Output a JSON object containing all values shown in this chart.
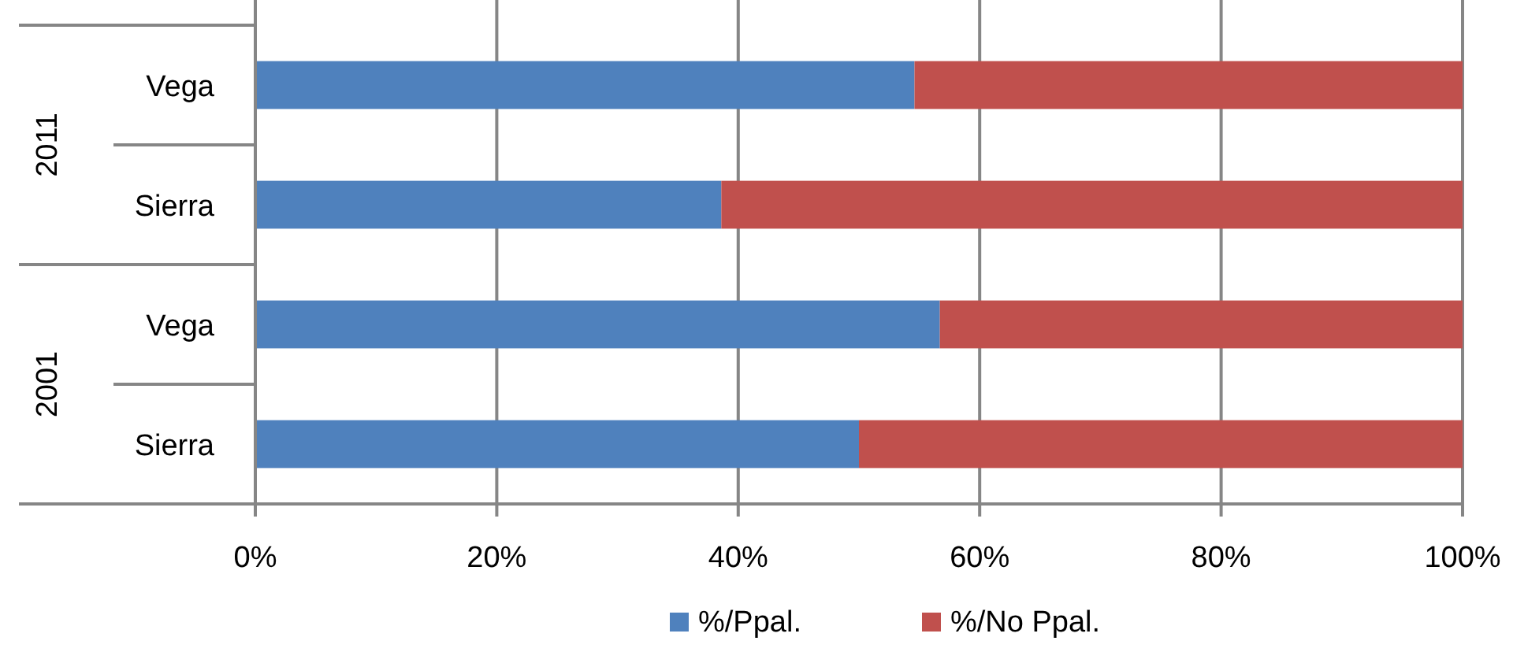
{
  "chart_data": {
    "type": "bar",
    "orientation": "horizontal",
    "stacked": true,
    "categories": [
      "Vega",
      "Sierra",
      "Vega",
      "Sierra"
    ],
    "series": [
      {
        "name": "%/Ppal.",
        "color": "#4f81bd",
        "values": [
          54.6,
          38.6,
          56.7,
          50.0
        ]
      },
      {
        "name": "%/No Ppal.",
        "color": "#c0504d",
        "values": [
          45.4,
          61.4,
          43.3,
          50.0
        ]
      }
    ],
    "annotations": [
      "2011",
      "2001"
    ],
    "xlim": [
      0,
      100
    ],
    "xticks": [
      {
        "value": 0,
        "label": "0%"
      },
      {
        "value": 20,
        "label": "20%"
      },
      {
        "value": 40,
        "label": "40%"
      },
      {
        "value": 60,
        "label": "60%"
      },
      {
        "value": 80,
        "label": "80%"
      },
      {
        "value": 100,
        "label": "100%"
      }
    ],
    "grid": "x",
    "legend": "bottom"
  }
}
